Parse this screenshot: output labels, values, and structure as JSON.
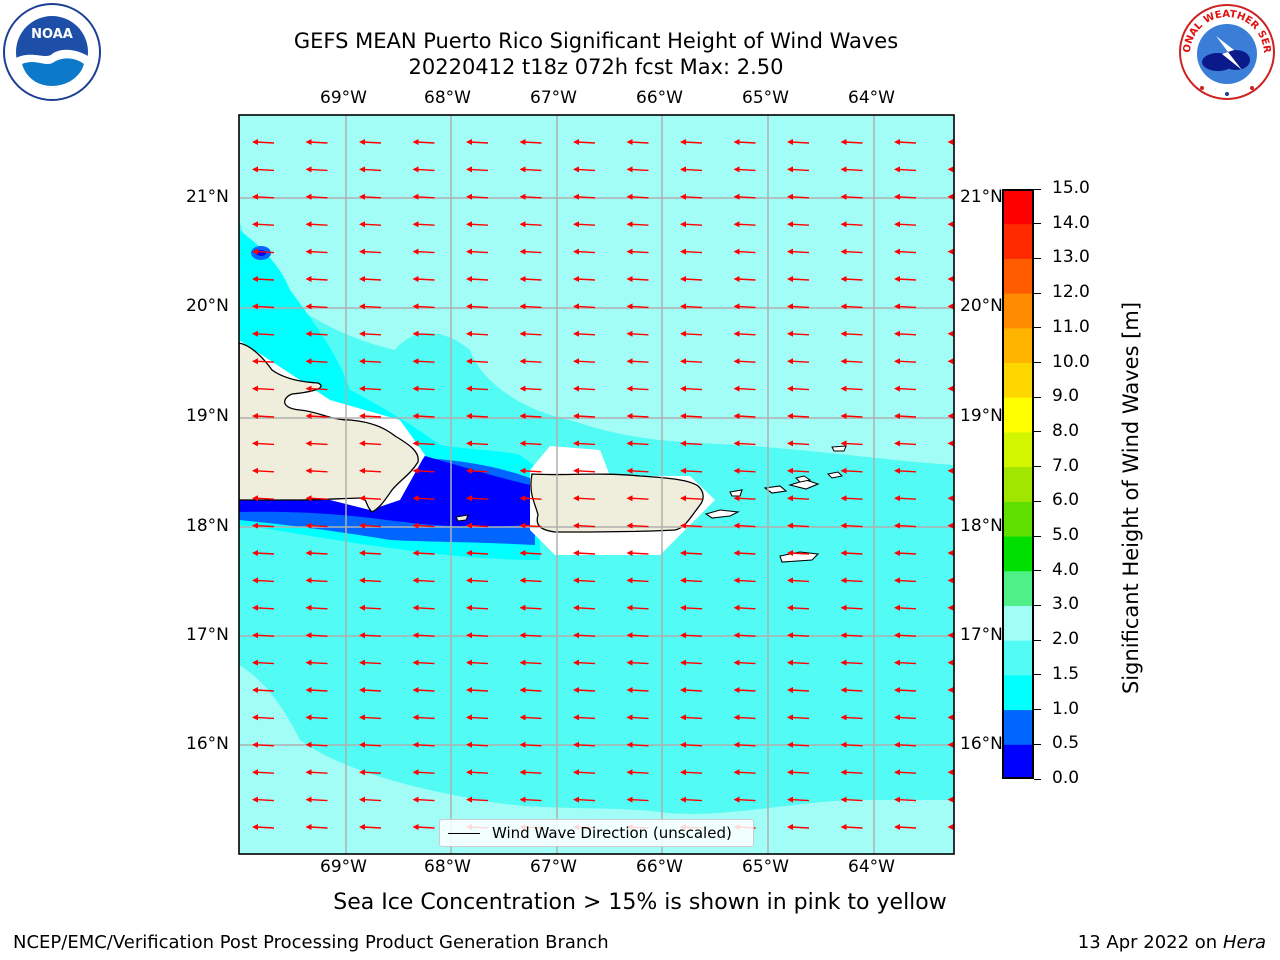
{
  "title": {
    "line1": "GEFS MEAN Puerto Rico Significant Height of Wind Waves",
    "line2": "20220412 t18z 072h fcst   Max: 2.50"
  },
  "logos": {
    "left": {
      "name": "NOAA",
      "ring_text": "NATIONAL OCEANIC AND ATMOSPHERIC ADMINISTRATION · U.S. DEPARTMENT OF COMMERCE"
    },
    "right": {
      "name": "NATIONAL WEATHER SERVICE"
    }
  },
  "map": {
    "lon_ticks": [
      "69°W",
      "68°W",
      "67°W",
      "66°W",
      "65°W",
      "64°W"
    ],
    "lat_ticks": [
      "21°N",
      "20°N",
      "19°N",
      "18°N",
      "17°N",
      "16°N"
    ],
    "ocean_color": "#52fbf3",
    "land_color": "#efeedc",
    "arrow_color": "#ff0000",
    "direction": "westward"
  },
  "legend": {
    "label": "Wind Wave Direction (unscaled)"
  },
  "colorbar": {
    "label": "Significant Height of Wind Waves [m]",
    "levels": [
      "0.0",
      "0.5",
      "1.0",
      "1.5",
      "2.0",
      "3.0",
      "4.0",
      "5.0",
      "6.0",
      "7.0",
      "8.0",
      "9.0",
      "10.0",
      "11.0",
      "12.0",
      "13.0",
      "14.0",
      "15.0"
    ],
    "colors": [
      "#0000ff",
      "#0066ff",
      "#00ffff",
      "#52fbf3",
      "#a2fdf7",
      "#50f088",
      "#00e000",
      "#60e000",
      "#a0e600",
      "#d2f500",
      "#ffff00",
      "#ffd700",
      "#ffb400",
      "#ff8c00",
      "#ff5c00",
      "#ff2a00",
      "#ff0000"
    ]
  },
  "footer": {
    "caption": "Sea Ice Concentration > 15% is shown in pink to yellow",
    "left": "NCEP/EMC/Verification Post Processing Product Generation Branch",
    "right_text": "13 Apr 2022 on ",
    "right_machine": "Hera"
  }
}
